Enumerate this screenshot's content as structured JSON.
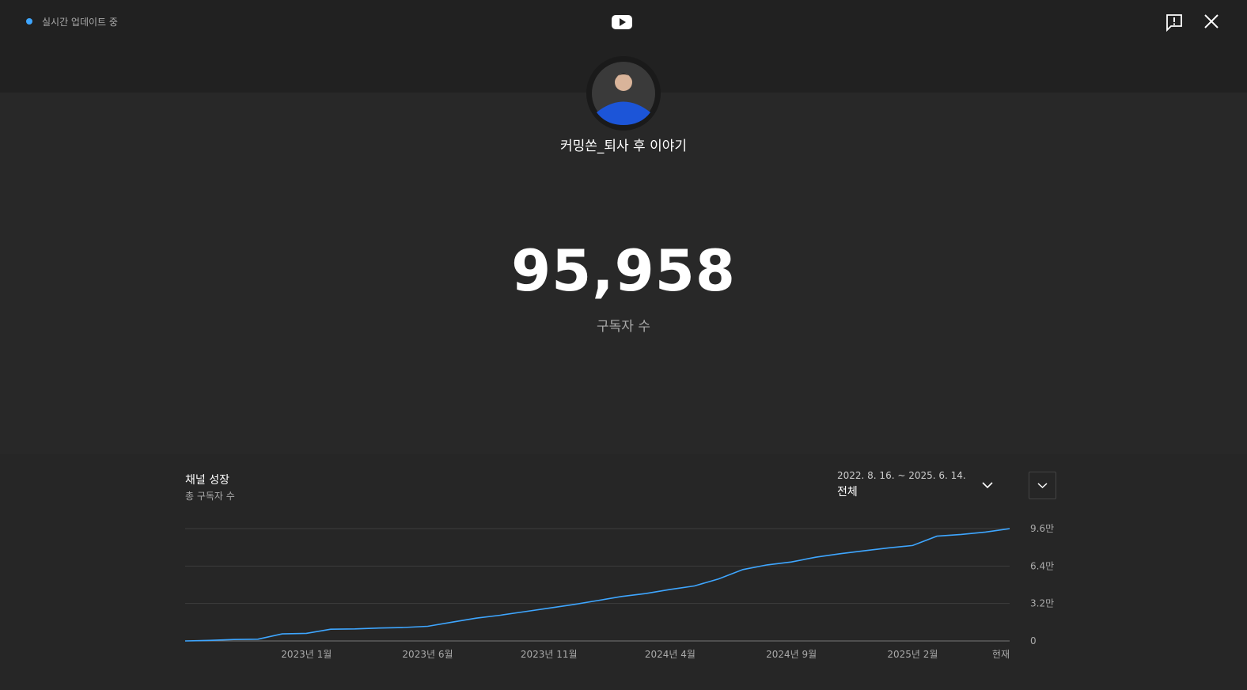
{
  "header": {
    "live_status": "실시간 업데이트 중"
  },
  "channel": {
    "name": "커밍쏜_퇴사 후 이야기",
    "subscriber_count": "95,958",
    "subscriber_label": "구독자 수"
  },
  "panel": {
    "title": "채널 성장",
    "subtitle": "총 구독자 수",
    "date_range": "2022. 8. 16. ~ 2025. 6. 14.",
    "period": "전체"
  },
  "chart_data": {
    "type": "line",
    "categories": [
      null,
      null,
      null,
      null,
      null,
      "2023년 1월",
      null,
      null,
      null,
      null,
      "2023년 6월",
      null,
      null,
      null,
      null,
      "2023년 11월",
      null,
      null,
      null,
      null,
      "2024년 4월",
      null,
      null,
      null,
      null,
      "2024년 9월",
      null,
      null,
      null,
      null,
      "2025년 2월",
      null,
      null,
      null,
      "현재"
    ],
    "values": [
      0,
      500,
      1200,
      1500,
      6000,
      6500,
      10000,
      10300,
      11000,
      11500,
      12500,
      16000,
      19500,
      22000,
      25000,
      28000,
      31000,
      34500,
      38000,
      40500,
      44000,
      47000,
      53000,
      61000,
      65000,
      67500,
      71500,
      74500,
      77000,
      79500,
      81500,
      89500,
      91000,
      93000,
      95958
    ],
    "color": "#3ea6ff",
    "ylim": [
      0,
      96000
    ],
    "yticks": [
      0,
      {
        "value": 32000,
        "label": "3.2만"
      },
      {
        "value": 64000,
        "label": "6.4만"
      },
      {
        "value": 96000,
        "label": "9.6만"
      }
    ],
    "grid": true
  }
}
